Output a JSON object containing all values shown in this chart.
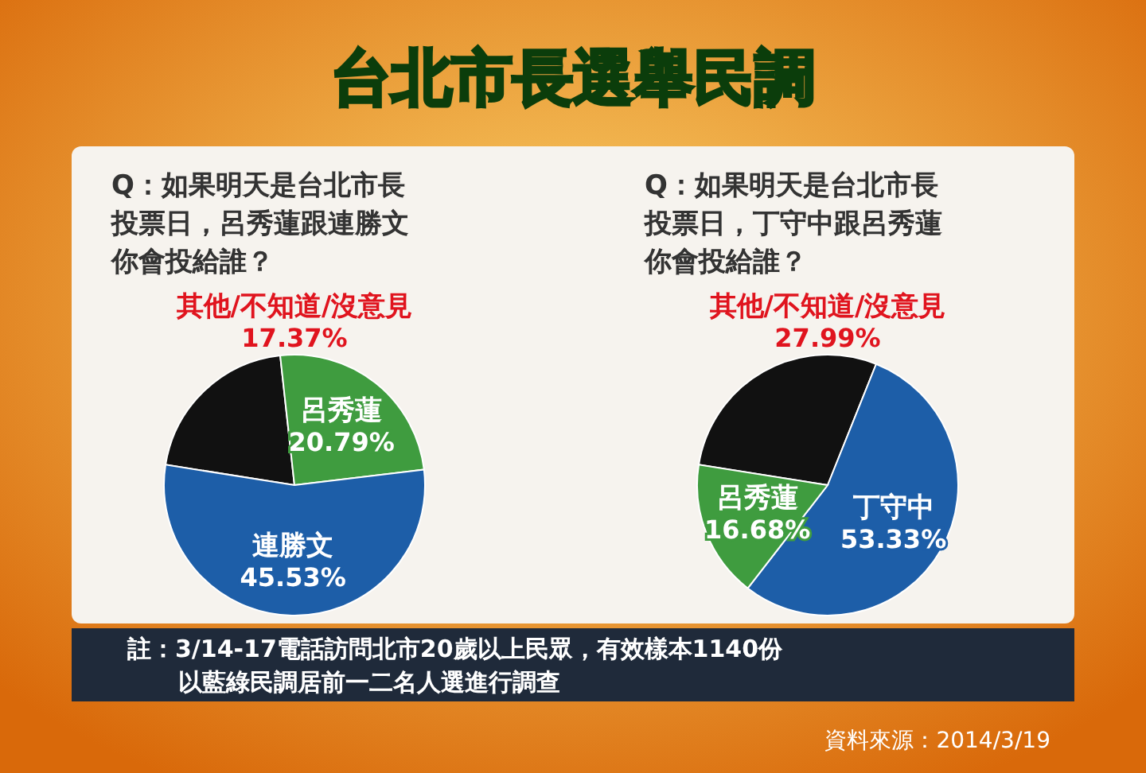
{
  "chart_data": [
    {
      "type": "pie",
      "title": "Q：如果明天是台北市長投票日，呂秀蓮跟連勝文你會投給誰？",
      "categories": [
        "其他/不知道/沒意見",
        "呂秀蓮",
        "連勝文"
      ],
      "values": [
        17.37,
        20.79,
        45.53
      ],
      "value_labels": [
        "17.37%",
        "20.79%",
        "45.53%"
      ],
      "colors": [
        "#111111",
        "#3f9c3f",
        "#1d5ea8"
      ],
      "annotations": [
        "台北市長選舉民調",
        "註：3/14-17電話訪問北市20歲以上民眾，有效樣本1140份",
        "以藍綠民調居前一二名人選進行調查",
        "資料來源：2014/3/19"
      ]
    },
    {
      "type": "pie",
      "title": "Q：如果明天是台北市長投票日，丁守中跟呂秀蓮你會投給誰？",
      "categories": [
        "其他/不知道/沒意見",
        "丁守中",
        "呂秀蓮"
      ],
      "values": [
        27.99,
        53.33,
        16.68
      ],
      "value_labels": [
        "27.99%",
        "53.33%",
        "16.68%"
      ],
      "colors": [
        "#111111",
        "#1d5ea8",
        "#3f9c3f"
      ]
    }
  ]
}
